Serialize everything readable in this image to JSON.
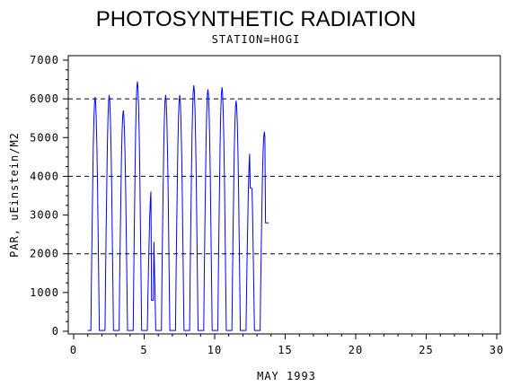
{
  "chart_data": {
    "type": "line",
    "title": "PHOTOSYNTHETIC RADIATION",
    "subtitle": "STATION=HOGI",
    "xlabel": "MAY 1993",
    "ylabel": "PAR, uEinstein/M2",
    "xlim": [
      0,
      30
    ],
    "ylim": [
      0,
      7000
    ],
    "x_ticks": [
      0,
      5,
      10,
      15,
      20,
      25,
      30
    ],
    "y_ticks": [
      0,
      1000,
      2000,
      3000,
      4000,
      5000,
      6000,
      7000
    ],
    "reference_lines": [
      2000,
      4000,
      6000
    ],
    "line_color": "#0000ff",
    "daily_peaks": [
      {
        "day": 1,
        "peak": 6050
      },
      {
        "day": 2,
        "peak": 6100
      },
      {
        "day": 3,
        "peak": 5700
      },
      {
        "day": 4,
        "peak": 6450
      },
      {
        "day": 5,
        "peak": 3700,
        "dip": 800
      },
      {
        "day": 6,
        "peak": 6100
      },
      {
        "day": 7,
        "peak": 6100
      },
      {
        "day": 8,
        "peak": 6350
      },
      {
        "day": 9,
        "peak": 6250
      },
      {
        "day": 10,
        "peak": 6300
      },
      {
        "day": 11,
        "peak": 5950
      },
      {
        "day": 12,
        "peak": 4700,
        "dip": 3700
      },
      {
        "day": 13,
        "peak": 5150,
        "end": 2800
      }
    ]
  }
}
